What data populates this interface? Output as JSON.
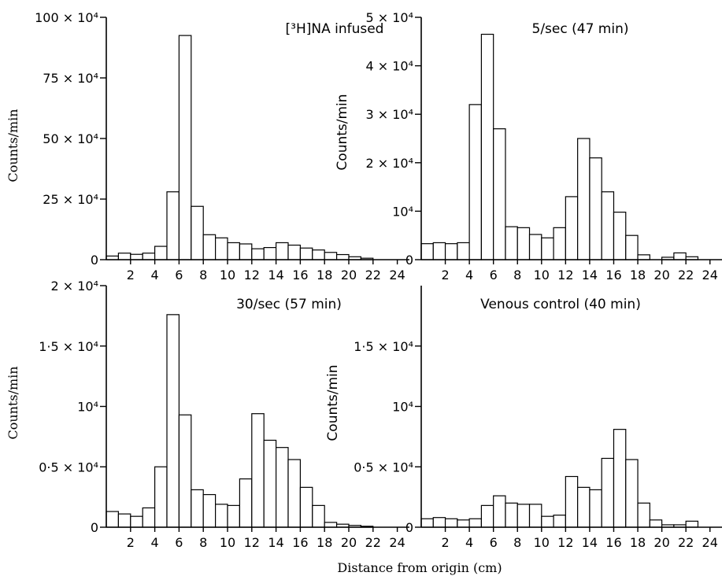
{
  "figure": {
    "xlabel": "Distance from origin (cm)"
  },
  "chart_data": [
    {
      "type": "bar",
      "title": "[³H]NA infused",
      "ylabel": "Counts/min",
      "x": [
        0.5,
        1.5,
        2.5,
        3.5,
        4.5,
        5.5,
        6.5,
        7.5,
        8.5,
        9.5,
        10.5,
        11.5,
        12.5,
        13.5,
        14.5,
        15.5,
        16.5,
        17.5,
        18.5,
        19.5,
        20.5,
        21.5
      ],
      "values": [
        1.5,
        2.7,
        2.2,
        2.7,
        5.5,
        28,
        92.5,
        22,
        10.3,
        9,
        7,
        6.5,
        4.5,
        5,
        7,
        6,
        4.8,
        4,
        3,
        2.1,
        1.2,
        0.6
      ],
      "value_unit": "×10^4 counts/min",
      "xlim": [
        0,
        25
      ],
      "ylim": [
        0,
        100
      ],
      "xticks": [
        2,
        4,
        6,
        8,
        10,
        12,
        14,
        16,
        18,
        20,
        22,
        24
      ],
      "xtick_labels": [
        "2",
        "4",
        "6",
        "8",
        "10",
        "12",
        "14",
        "16",
        "18",
        "20",
        "22",
        "24"
      ],
      "yticks": [
        0,
        25,
        50,
        75,
        100
      ],
      "ytick_labels": [
        "0",
        "25 × 10⁴",
        "50 × 10⁴",
        "75 × 10⁴",
        "100 × 10⁴"
      ]
    },
    {
      "type": "bar",
      "title": "5/sec (47 min)",
      "ylabel": "Counts/min",
      "x": [
        0.5,
        1.5,
        2.5,
        3.5,
        4.5,
        5.5,
        6.5,
        7.5,
        8.5,
        9.5,
        10.5,
        11.5,
        12.5,
        13.5,
        14.5,
        15.5,
        16.5,
        17.5,
        18.5,
        19.5,
        20.5,
        21.5,
        22.5
      ],
      "values": [
        0.33,
        0.35,
        0.33,
        0.35,
        3.2,
        4.65,
        2.7,
        0.68,
        0.66,
        0.52,
        0.45,
        0.66,
        1.3,
        2.5,
        2.1,
        1.4,
        0.98,
        0.5,
        0.1,
        0.0,
        0.05,
        0.14,
        0.06
      ],
      "value_unit": "×10^4 counts/min",
      "xlim": [
        0,
        25
      ],
      "ylim": [
        0,
        5
      ],
      "xticks": [
        2,
        4,
        6,
        8,
        10,
        12,
        14,
        16,
        18,
        20,
        22,
        24
      ],
      "xtick_labels": [
        "2",
        "4",
        "6",
        "8",
        "10",
        "12",
        "14",
        "16",
        "18",
        "20",
        "22",
        "24"
      ],
      "yticks": [
        0,
        1,
        2,
        3,
        4,
        5
      ],
      "ytick_labels": [
        "0",
        "10⁴",
        "2 × 10⁴",
        "3 × 10⁴",
        "4 × 10⁴",
        "5 × 10⁴"
      ]
    },
    {
      "type": "bar",
      "title": "30/sec (57 min)",
      "ylabel": "Counts/min",
      "x": [
        0.5,
        1.5,
        2.5,
        3.5,
        4.5,
        5.5,
        6.5,
        7.5,
        8.5,
        9.5,
        10.5,
        11.5,
        12.5,
        13.5,
        14.5,
        15.5,
        16.5,
        17.5,
        18.5,
        19.5,
        20.5,
        21.5
      ],
      "values": [
        0.13,
        0.11,
        0.09,
        0.16,
        0.5,
        1.76,
        0.93,
        0.31,
        0.27,
        0.19,
        0.18,
        0.4,
        0.94,
        0.72,
        0.66,
        0.56,
        0.33,
        0.18,
        0.04,
        0.025,
        0.015,
        0.008
      ],
      "value_unit": "×10^4 counts/min",
      "xlim": [
        0,
        25
      ],
      "ylim": [
        0,
        2
      ],
      "xticks": [
        2,
        4,
        6,
        8,
        10,
        12,
        14,
        16,
        18,
        20,
        22,
        24
      ],
      "xtick_labels": [
        "2",
        "4",
        "6",
        "8",
        "10",
        "12",
        "14",
        "16",
        "18",
        "20",
        "22",
        "24"
      ],
      "yticks": [
        0,
        0.5,
        1,
        1.5,
        2
      ],
      "ytick_labels": [
        "0",
        "0·5 × 10⁴",
        "10⁴",
        "1·5 × 10⁴",
        "2 × 10⁴"
      ]
    },
    {
      "type": "bar",
      "title": "Venous control (40 min)",
      "ylabel": "Counts/min",
      "x": [
        0.5,
        1.5,
        2.5,
        3.5,
        4.5,
        5.5,
        6.5,
        7.5,
        8.5,
        9.5,
        10.5,
        11.5,
        12.5,
        13.5,
        14.5,
        15.5,
        16.5,
        17.5,
        18.5,
        19.5,
        20.5,
        21.5,
        22.5
      ],
      "values": [
        0.07,
        0.08,
        0.07,
        0.06,
        0.07,
        0.18,
        0.26,
        0.2,
        0.19,
        0.19,
        0.09,
        0.1,
        0.42,
        0.33,
        0.31,
        0.57,
        0.81,
        0.56,
        0.2,
        0.06,
        0.02,
        0.02,
        0.05
      ],
      "value_unit": "×10^4 counts/min",
      "xlim": [
        0,
        25
      ],
      "ylim": [
        0,
        2
      ],
      "xticks": [
        2,
        4,
        6,
        8,
        10,
        12,
        14,
        16,
        18,
        20,
        22,
        24
      ],
      "xtick_labels": [
        "2",
        "4",
        "6",
        "8",
        "10",
        "12",
        "14",
        "16",
        "18",
        "20",
        "22",
        "24"
      ],
      "yticks": [
        0,
        0.5,
        1,
        1.5
      ],
      "ytick_labels": [
        "0",
        "0·5 × 10⁴",
        "10⁴",
        "1·5 × 10⁴"
      ]
    }
  ]
}
